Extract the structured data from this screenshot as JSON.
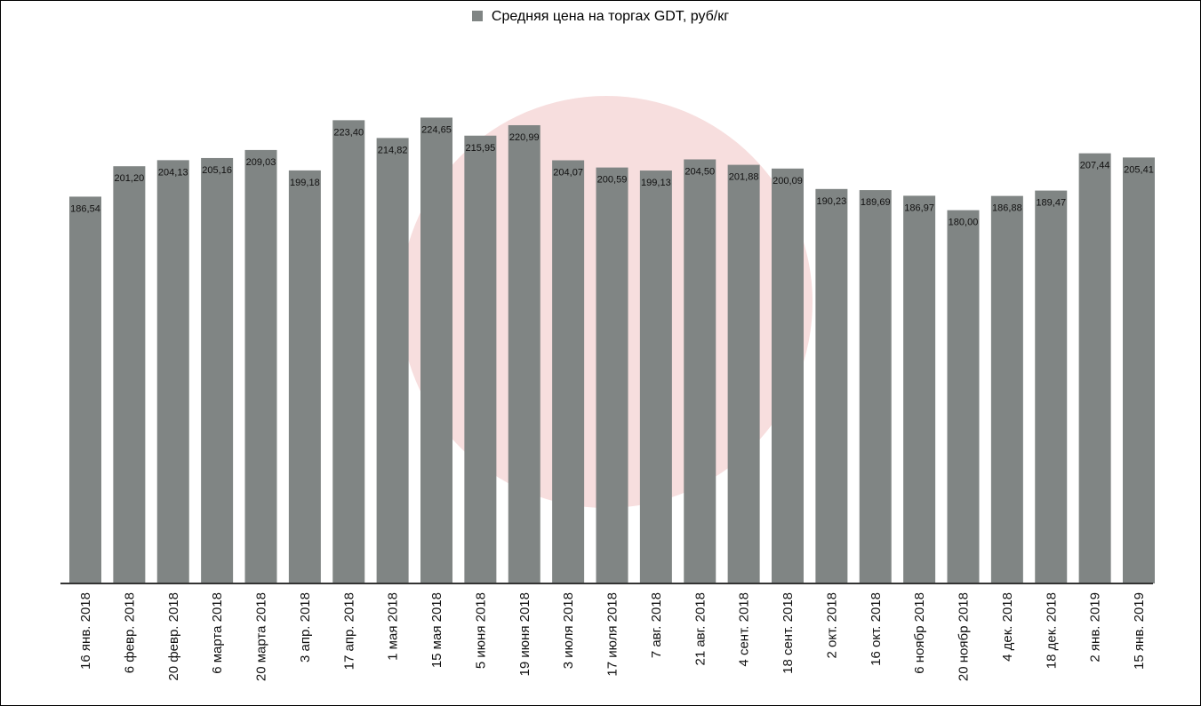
{
  "chart_data": {
    "type": "bar",
    "legend": "Средняя цена на торгах GDT, руб/кг",
    "legend_placement": "top-center",
    "grid": false,
    "ylim": [
      0,
      240
    ],
    "categories": [
      "16 янв. 2018",
      "6 февр. 2018",
      "20 февр. 2018",
      "6 марта 2018",
      "20 марта 2018",
      "3 апр. 2018",
      "17 апр. 2018",
      "1 мая 2018",
      "15 мая 2018",
      "5 июня 2018",
      "19 июня 2018",
      "3 июля 2018",
      "17 июля 2018",
      "7 авг. 2018",
      "21 авг. 2018",
      "4 сент. 2018",
      "18 сент. 2018",
      "2 окт. 2018",
      "16 окт. 2018",
      "6 ноябр 2018",
      "20 ноябр 2018",
      "4 дек. 2018",
      "18 дек. 2018",
      "2 янв. 2019",
      "15 янв. 2019"
    ],
    "values": [
      186.54,
      201.2,
      204.13,
      205.16,
      209.03,
      199.18,
      223.4,
      214.82,
      224.65,
      215.95,
      220.99,
      204.07,
      200.59,
      199.13,
      204.5,
      201.88,
      200.09,
      190.23,
      189.69,
      186.97,
      180.0,
      186.88,
      189.47,
      207.44,
      205.41
    ],
    "value_labels": [
      "186,54",
      "201,20",
      "204,13",
      "205,16",
      "209,03",
      "199,18",
      "223,40",
      "214,82",
      "224,65",
      "215,95",
      "220,99",
      "204,07",
      "200,59",
      "199,13",
      "204,50",
      "201,88",
      "200,09",
      "190,23",
      "189,69",
      "186,97",
      "180,00",
      "186,88",
      "189,47",
      "207,44",
      "205,41"
    ]
  },
  "colors": {
    "bar": "#808584",
    "axis": "#333333",
    "watermark": "#f7dede"
  }
}
